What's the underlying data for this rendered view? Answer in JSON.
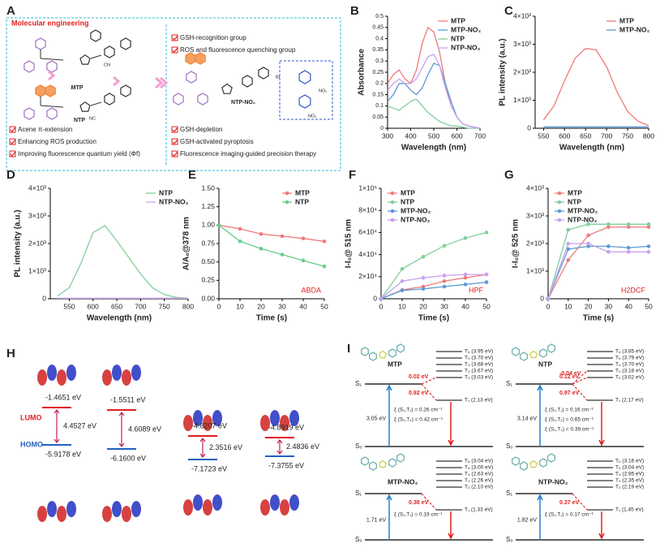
{
  "panel_labels": [
    "A",
    "B",
    "C",
    "D",
    "E",
    "F",
    "G",
    "H",
    "I"
  ],
  "panel_a": {
    "title": "Molecular engineering",
    "molecules": [
      "MTP",
      "NTP",
      "NTP-NO₂"
    ],
    "atoms": [
      "CN",
      "NC",
      "Br",
      "NO₂",
      "NO₂"
    ],
    "left_items": [
      "Acene π-extension",
      "Enhancing ROS production",
      "Improving fluorescence quantum yield (Φf)"
    ],
    "right_top_items": [
      "GSH-recognition group",
      "ROS and fluorescence quenching group"
    ],
    "right_bottom_items": [
      "GSH-depletion",
      "GSH-activated pyroptosis",
      "Fluorescence imaging-guided precision therapy"
    ]
  },
  "chart_data": [
    {
      "type": "line",
      "xlabel": "Wavelength (nm)",
      "ylabel": "Absorbance",
      "x": [
        300,
        325,
        350,
        375,
        400,
        425,
        450,
        475,
        500,
        525,
        550,
        575,
        600,
        625,
        650,
        675,
        700
      ],
      "series": [
        {
          "name": "MTP",
          "color": "#f07a7a",
          "values": [
            0.2,
            0.24,
            0.26,
            0.22,
            0.2,
            0.26,
            0.38,
            0.45,
            0.43,
            0.34,
            0.2,
            0.1,
            0.05,
            0.02,
            0.01,
            0.005,
            0
          ]
        },
        {
          "name": "MTP-NO₂",
          "color": "#5b9bd5",
          "values": [
            0.12,
            0.15,
            0.2,
            0.2,
            0.17,
            0.15,
            0.18,
            0.24,
            0.29,
            0.28,
            0.2,
            0.12,
            0.05,
            0.02,
            0.01,
            0.005,
            0
          ]
        },
        {
          "name": "NTP",
          "color": "#7fcf9a",
          "values": [
            0.1,
            0.09,
            0.08,
            0.1,
            0.12,
            0.13,
            0.1,
            0.07,
            0.05,
            0.03,
            0.02,
            0.01,
            0.01,
            0.005,
            0,
            0,
            0
          ]
        },
        {
          "name": "NTP-NO₂",
          "color": "#c9a0f0",
          "values": [
            0.17,
            0.2,
            0.22,
            0.2,
            0.2,
            0.22,
            0.27,
            0.32,
            0.33,
            0.28,
            0.18,
            0.1,
            0.05,
            0.02,
            0.01,
            0.005,
            0
          ]
        }
      ],
      "xlim": [
        300,
        700
      ],
      "xticks": [
        300,
        400,
        500,
        600,
        700
      ],
      "ylim": [
        0,
        0.5
      ],
      "yticks": [
        0,
        0.05,
        0.1,
        0.15,
        0.2,
        0.25,
        0.3,
        0.35,
        0.4,
        0.45,
        0.5
      ],
      "legend": "upper right",
      "markers": false
    },
    {
      "type": "line",
      "xlabel": "Wavelength (nm)",
      "ylabel": "PL intensity (a.u.)",
      "x": [
        550,
        575,
        600,
        625,
        650,
        675,
        700,
        725,
        750,
        775,
        800
      ],
      "series": [
        {
          "name": "MTP",
          "color": "#f07a7a",
          "values": [
            300,
            800,
            1700,
            2500,
            2850,
            2800,
            2200,
            1300,
            600,
            250,
            100
          ]
        },
        {
          "name": "MTP-NO₂",
          "color": "#5b9bd5",
          "values": [
            50,
            50,
            50,
            50,
            50,
            50,
            50,
            50,
            50,
            50,
            50
          ]
        }
      ],
      "xlim": [
        530,
        800
      ],
      "xticks": [
        550,
        600,
        650,
        700,
        750,
        800
      ],
      "ylim": [
        0,
        4000
      ],
      "yticks": [
        0,
        {
          "value": 1000,
          "label": "1×10³"
        },
        {
          "value": 2000,
          "label": "2×10³"
        },
        {
          "value": 3000,
          "label": "3×10³"
        },
        {
          "value": 4000,
          "label": "4×10³"
        }
      ],
      "legend": "upper right",
      "markers": false
    },
    {
      "type": "line",
      "xlabel": "Wavelength (nm)",
      "ylabel": "PL intensity (a.u.)",
      "x": [
        525,
        550,
        575,
        600,
        625,
        650,
        675,
        700,
        725,
        750,
        775,
        800
      ],
      "series": [
        {
          "name": "NTP",
          "color": "#7fcf9a",
          "values": [
            100,
            400,
            1300,
            2400,
            2650,
            2100,
            1500,
            900,
            400,
            150,
            50,
            20
          ]
        },
        {
          "name": "NTP-NO₂",
          "color": "#c9a0f0",
          "values": [
            20,
            20,
            20,
            20,
            20,
            20,
            20,
            20,
            20,
            20,
            20,
            20
          ]
        }
      ],
      "xlim": [
        510,
        800
      ],
      "xticks": [
        550,
        600,
        650,
        700,
        750,
        800
      ],
      "ylim": [
        0,
        4000
      ],
      "yticks": [
        0,
        {
          "value": 1000,
          "label": "1×10³"
        },
        {
          "value": 2000,
          "label": "2×10³"
        },
        {
          "value": 3000,
          "label": "3×10³"
        },
        {
          "value": 4000,
          "label": "4×10³"
        }
      ],
      "legend": "upper right",
      "markers": false
    },
    {
      "type": "line",
      "xlabel": "Time (s)",
      "ylabel": "A/A₀@378 nm",
      "annotation": "ABDA",
      "x": [
        0,
        10,
        20,
        30,
        40,
        50
      ],
      "series": [
        {
          "name": "MTP",
          "color": "#f07a7a",
          "values": [
            1,
            0.95,
            0.88,
            0.85,
            0.82,
            0.78
          ]
        },
        {
          "name": "NTP",
          "color": "#66cc88",
          "values": [
            1,
            0.78,
            0.68,
            0.6,
            0.52,
            0.44
          ]
        }
      ],
      "xlim": [
        0,
        50
      ],
      "xticks": [
        0,
        10,
        20,
        30,
        40,
        50
      ],
      "ylim": [
        0,
        1.5
      ],
      "yticks": [
        {
          "value": 0,
          "label": "0.00"
        },
        {
          "value": 0.25,
          "label": "0.25"
        },
        {
          "value": 0.5,
          "label": "0.50"
        },
        {
          "value": 0.75,
          "label": "0.75"
        },
        {
          "value": 1,
          "label": "1.00"
        },
        {
          "value": 1.25,
          "label": "1.25"
        },
        {
          "value": 1.5,
          "label": "1.50"
        }
      ],
      "legend": "upper right",
      "markers": true
    },
    {
      "type": "line",
      "xlabel": "Time (s)",
      "ylabel": "I-I₀@ 515 nm",
      "annotation": "HPF",
      "x": [
        0,
        10,
        20,
        30,
        40,
        50
      ],
      "series": [
        {
          "name": "MTP",
          "color": "#f07a7a",
          "values": [
            0,
            8000,
            11000,
            16000,
            19000,
            22000
          ]
        },
        {
          "name": "NTP",
          "color": "#7fcf9a",
          "values": [
            0,
            27000,
            38000,
            48000,
            55000,
            60000
          ]
        },
        {
          "name": "MTP-NO₂",
          "color": "#5b9bd5",
          "values": [
            0,
            7500,
            9000,
            11000,
            13000,
            15000
          ]
        },
        {
          "name": "NTP-NO₂",
          "color": "#c9a0f0",
          "values": [
            0,
            16000,
            19000,
            21000,
            22000,
            22000
          ]
        }
      ],
      "xlim": [
        0,
        50
      ],
      "xticks": [
        0,
        10,
        20,
        30,
        40,
        50
      ],
      "ylim": [
        0,
        100000
      ],
      "yticks": [
        0,
        {
          "value": 20000,
          "label": "2×10⁴"
        },
        {
          "value": 40000,
          "label": "4×10⁴"
        },
        {
          "value": 60000,
          "label": "6×10⁴"
        },
        {
          "value": 80000,
          "label": "8×10⁴"
        },
        {
          "value": 100000,
          "label": "1×10⁵"
        }
      ],
      "legend": "upper left",
      "markers": true
    },
    {
      "type": "line",
      "xlabel": "Time (s)",
      "ylabel": "I-I₀@ 525 nm",
      "annotation": "H2DCF",
      "x": [
        0,
        10,
        20,
        30,
        40,
        50
      ],
      "series": [
        {
          "name": "MTP",
          "color": "#f07a7a",
          "values": [
            0,
            1400,
            2300,
            2600,
            2600,
            2600
          ]
        },
        {
          "name": "NTP",
          "color": "#7fcf9a",
          "values": [
            0,
            2500,
            2700,
            2700,
            2700,
            2700
          ]
        },
        {
          "name": "MTP-NO₂",
          "color": "#5b9bd5",
          "values": [
            0,
            1800,
            1900,
            1900,
            1850,
            1900
          ]
        },
        {
          "name": "NTP-NO₂",
          "color": "#c9a0f0",
          "values": [
            0,
            2000,
            2000,
            1700,
            1700,
            1700
          ]
        }
      ],
      "xlim": [
        0,
        50
      ],
      "xticks": [
        0,
        10,
        20,
        30,
        40,
        50
      ],
      "ylim": [
        0,
        4000
      ],
      "yticks": [
        0,
        {
          "value": 1000,
          "label": "1×10³"
        },
        {
          "value": 2000,
          "label": "2×10³"
        },
        {
          "value": 3000,
          "label": "3×10³"
        },
        {
          "value": 4000,
          "label": "4×10³"
        }
      ],
      "legend": "upper left",
      "markers": true
    }
  ],
  "panel_h": {
    "lumo_label": "LUMO",
    "homo_label": "HOMO",
    "orbitals": [
      {
        "lumo": "-1.4651 eV",
        "homo": "-5.9178 eV",
        "gap": "4.4527 eV"
      },
      {
        "lumo": "-1.5511 eV",
        "homo": "-6.1600 eV",
        "gap": "4.6089 eV"
      },
      {
        "lumo": "-4.8207 eV",
        "homo": "-7.1723 eV",
        "gap": "2.3516 eV"
      },
      {
        "lumo": "-4.8919 eV",
        "homo": "-7.3755 eV",
        "gap": "2.4836 eV"
      }
    ]
  },
  "panel_i": [
    {
      "name": "MTP",
      "s1": "S₁",
      "s0": "S₀",
      "triplets": [
        "T₆ (3.95 eV)",
        "T₅ (3.70 eV)",
        "T₄ (3.68 eV)",
        "T₃ (3.67 eV)",
        "T₂ (3.03 eV)",
        "T₁ (2.13 eV)"
      ],
      "gaps": [
        "0.02 eV",
        "0.92 eV"
      ],
      "excitation": "3.05 eV",
      "xi": [
        "ξ (S₁,T₁) = 0.26 cm⁻¹",
        "ξ (S₁,T₂) = 0.42 cm⁻¹"
      ]
    },
    {
      "name": "NTP",
      "s1": "S₁",
      "s0": "S₀",
      "triplets": [
        "T₆ (3.85 eV)",
        "T₅ (3.79 eV)",
        "T₄ (3.70 eV)",
        "T₃ (3.18 eV)",
        "T₂ (3.02 eV)",
        "T₁ (2.17 eV)"
      ],
      "gaps": [
        "-0.04 eV",
        "0.12 eV",
        "0.97 eV"
      ],
      "excitation": "3.14 eV",
      "xi": [
        "ξ (S₁,T₁) = 0.16 cm⁻¹",
        "ξ (S₁,T₂) = 0.65 cm⁻¹",
        "ξ (S₁,T₃) = 0.39 cm⁻¹"
      ]
    },
    {
      "name": "MTP-NO₂",
      "s1": "S₁",
      "s0": "S₀",
      "triplets": [
        "T₆ (3.04 eV)",
        "T₅ (3.00 eV)",
        "T₄ (2.63 eV)",
        "T₃ (2.26 eV)",
        "T₂ (2.10 eV)",
        "T₁ (1.33 eV)"
      ],
      "gaps": [
        "0.38 eV"
      ],
      "excitation": "1.71 eV",
      "xi": [
        "ξ (S₁,T₁) = 0.19 cm⁻¹"
      ]
    },
    {
      "name": "NTP-NO₂",
      "s1": "S₁",
      "s0": "S₀",
      "triplets": [
        "T₆ (3.16 eV)",
        "T₅ (3.04 eV)",
        "T₄ (2.95 eV)",
        "T₃ (2.35 eV)",
        "T₂ (2.19 eV)",
        "T₁ (1.45 eV)"
      ],
      "gaps": [
        "0.37 eV"
      ],
      "excitation": "1.82 eV",
      "xi": [
        "ξ (S₁,T₁) = 0.17 cm⁻¹"
      ]
    }
  ]
}
